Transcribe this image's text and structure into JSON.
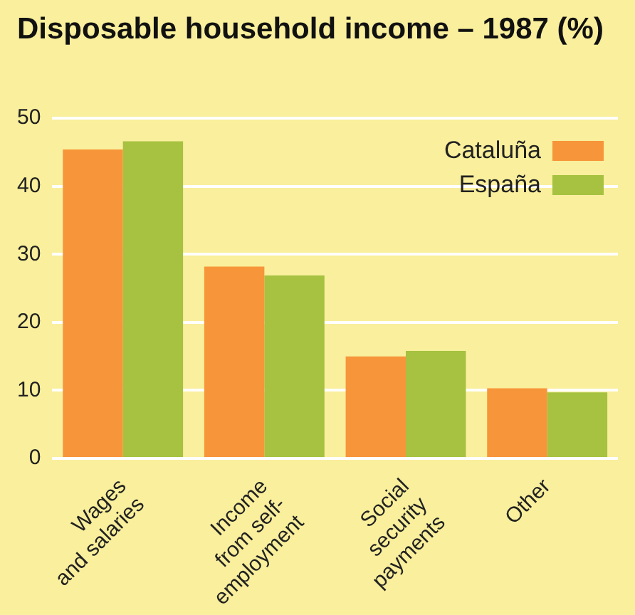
{
  "chart_data": {
    "type": "bar",
    "title": "Disposable household income – 1987 (%)",
    "categories": [
      "Wages\nand salaries",
      "Income\nfrom self-\nemployment",
      "Social\nsecurity\npayments",
      "Other"
    ],
    "series": [
      {
        "name": "Cataluña",
        "color": "#f7953a",
        "values": [
          45.4,
          28.2,
          15.0,
          10.3
        ]
      },
      {
        "name": "España",
        "color": "#a6c240",
        "values": [
          46.6,
          26.9,
          15.8,
          9.7
        ]
      }
    ],
    "ylim": [
      0,
      50
    ],
    "yticks": [
      0,
      10,
      20,
      30,
      40,
      50
    ],
    "grid": "y",
    "legend": "top right"
  }
}
